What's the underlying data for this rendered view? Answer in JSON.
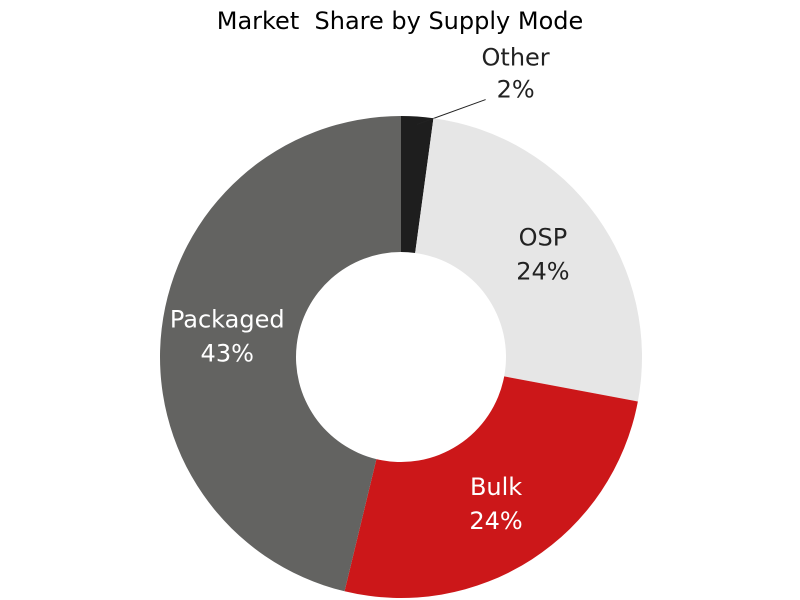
{
  "chart_data": {
    "type": "donut",
    "title": "Market  Share by Supply Mode",
    "categories": [
      "Other",
      "OSP",
      "Bulk",
      "Packaged"
    ],
    "values": [
      2,
      24,
      24,
      43
    ],
    "value_labels": [
      "2%",
      "24%",
      "24%",
      "43%"
    ],
    "colors": [
      "#1e1e1e",
      "#e6e6e6",
      "#cc1719",
      "#636361"
    ]
  }
}
